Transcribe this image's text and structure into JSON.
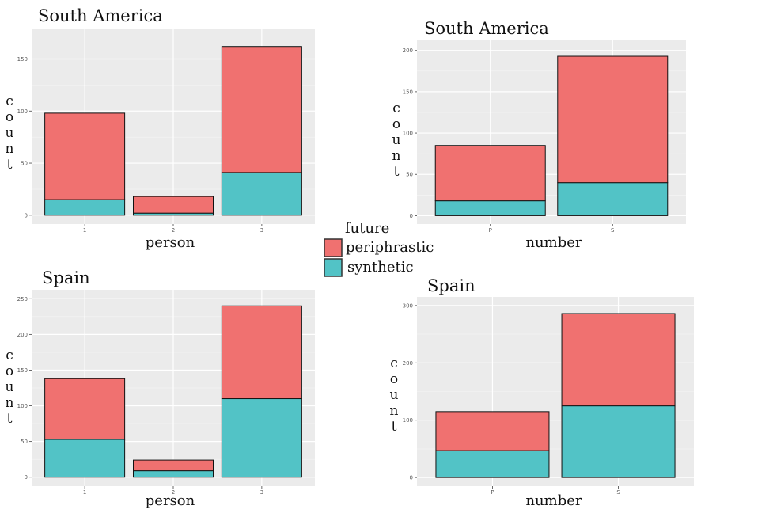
{
  "legend": {
    "title": "future",
    "items": [
      {
        "label": "periphrastic",
        "color": "#F07170"
      },
      {
        "label": "synthetic",
        "color": "#52C3C6"
      }
    ]
  },
  "chart_data": [
    {
      "type": "bar",
      "stacked": true,
      "title": "South America",
      "xlabel": "person",
      "ylabel": "count",
      "categories": [
        "1",
        "2",
        "3"
      ],
      "ylim": [
        0,
        170
      ],
      "yticks": [
        0,
        50,
        100,
        150
      ],
      "series": [
        {
          "name": "synthetic",
          "values": [
            15,
            2,
            41
          ]
        },
        {
          "name": "periphrastic",
          "values": [
            83,
            16,
            121
          ]
        }
      ]
    },
    {
      "type": "bar",
      "stacked": true,
      "title": "South America",
      "xlabel": "number",
      "ylabel": "count",
      "categories": [
        "P",
        "S"
      ],
      "ylim": [
        0,
        203
      ],
      "yticks": [
        0,
        50,
        100,
        150,
        200
      ],
      "series": [
        {
          "name": "synthetic",
          "values": [
            18,
            40
          ]
        },
        {
          "name": "periphrastic",
          "values": [
            67,
            153
          ]
        }
      ]
    },
    {
      "type": "bar",
      "stacked": true,
      "title": "Spain",
      "xlabel": "person",
      "ylabel": "count",
      "categories": [
        "1",
        "2",
        "3"
      ],
      "ylim": [
        0,
        250
      ],
      "yticks": [
        0,
        50,
        100,
        150,
        200,
        250
      ],
      "series": [
        {
          "name": "synthetic",
          "values": [
            53,
            9,
            110
          ]
        },
        {
          "name": "periphrastic",
          "values": [
            85,
            15,
            130
          ]
        }
      ]
    },
    {
      "type": "bar",
      "stacked": true,
      "title": "Spain",
      "xlabel": "number",
      "ylabel": "count",
      "categories": [
        "P",
        "S"
      ],
      "ylim": [
        0,
        300
      ],
      "yticks": [
        0,
        100,
        200,
        300
      ],
      "series": [
        {
          "name": "synthetic",
          "values": [
            47,
            125
          ]
        },
        {
          "name": "periphrastic",
          "values": [
            68,
            161
          ]
        }
      ]
    }
  ]
}
